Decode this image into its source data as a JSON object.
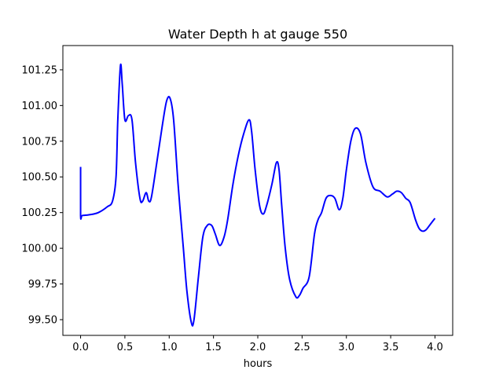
{
  "chart_data": {
    "type": "line",
    "title": "Water Depth h at gauge 550",
    "xlabel": "hours",
    "ylabel": "",
    "xlim": [
      -0.2,
      4.2
    ],
    "ylim": [
      99.39,
      101.42
    ],
    "xticks": [
      0.0,
      0.5,
      1.0,
      1.5,
      2.0,
      2.5,
      3.0,
      3.5,
      4.0
    ],
    "xtick_labels": [
      "0.0",
      "0.5",
      "1.0",
      "1.5",
      "2.0",
      "2.5",
      "3.0",
      "3.5",
      "4.0"
    ],
    "yticks": [
      99.5,
      99.75,
      100.0,
      100.25,
      100.5,
      100.75,
      101.0,
      101.25
    ],
    "ytick_labels": [
      "99.50",
      "99.75",
      "100.00",
      "100.25",
      "100.50",
      "100.75",
      "101.00",
      "101.25"
    ],
    "grid": false,
    "series": [
      {
        "name": "",
        "color": "#0000ff",
        "x": [
          0.0,
          0.0,
          0.02,
          0.1,
          0.2,
          0.3,
          0.36,
          0.4,
          0.42,
          0.45,
          0.47,
          0.5,
          0.54,
          0.58,
          0.62,
          0.67,
          0.7,
          0.74,
          0.77,
          0.8,
          0.86,
          0.92,
          0.97,
          1.01,
          1.05,
          1.1,
          1.16,
          1.2,
          1.25,
          1.28,
          1.33,
          1.38,
          1.43,
          1.48,
          1.52,
          1.57,
          1.62,
          1.66,
          1.72,
          1.78,
          1.84,
          1.9,
          1.93,
          1.97,
          2.02,
          2.06,
          2.1,
          2.16,
          2.21,
          2.24,
          2.27,
          2.31,
          2.36,
          2.43,
          2.47,
          2.51,
          2.58,
          2.64,
          2.68,
          2.72,
          2.77,
          2.82,
          2.87,
          2.92,
          2.96,
          3.0,
          3.05,
          3.1,
          3.16,
          3.22,
          3.3,
          3.38,
          3.46,
          3.52,
          3.57,
          3.62,
          3.67,
          3.72,
          3.78,
          3.82,
          3.86,
          3.9,
          3.95,
          4.0
        ],
        "values": [
          100.57,
          100.23,
          100.23,
          100.235,
          100.25,
          100.29,
          100.33,
          100.5,
          100.9,
          101.28,
          101.15,
          100.9,
          100.93,
          100.9,
          100.6,
          100.35,
          100.33,
          100.39,
          100.33,
          100.36,
          100.6,
          100.85,
          101.03,
          101.05,
          100.9,
          100.45,
          100.0,
          99.7,
          99.48,
          99.5,
          99.8,
          100.08,
          100.16,
          100.16,
          100.1,
          100.02,
          100.08,
          100.2,
          100.45,
          100.65,
          100.8,
          100.9,
          100.82,
          100.55,
          100.3,
          100.24,
          100.3,
          100.45,
          100.6,
          100.55,
          100.3,
          100.0,
          99.78,
          99.66,
          99.67,
          99.72,
          99.8,
          100.1,
          100.2,
          100.25,
          100.35,
          100.37,
          100.35,
          100.27,
          100.35,
          100.55,
          100.75,
          100.84,
          100.8,
          100.6,
          100.43,
          100.4,
          100.36,
          100.38,
          100.4,
          100.39,
          100.35,
          100.32,
          100.2,
          100.14,
          100.12,
          100.13,
          100.17,
          100.21
        ]
      }
    ]
  }
}
